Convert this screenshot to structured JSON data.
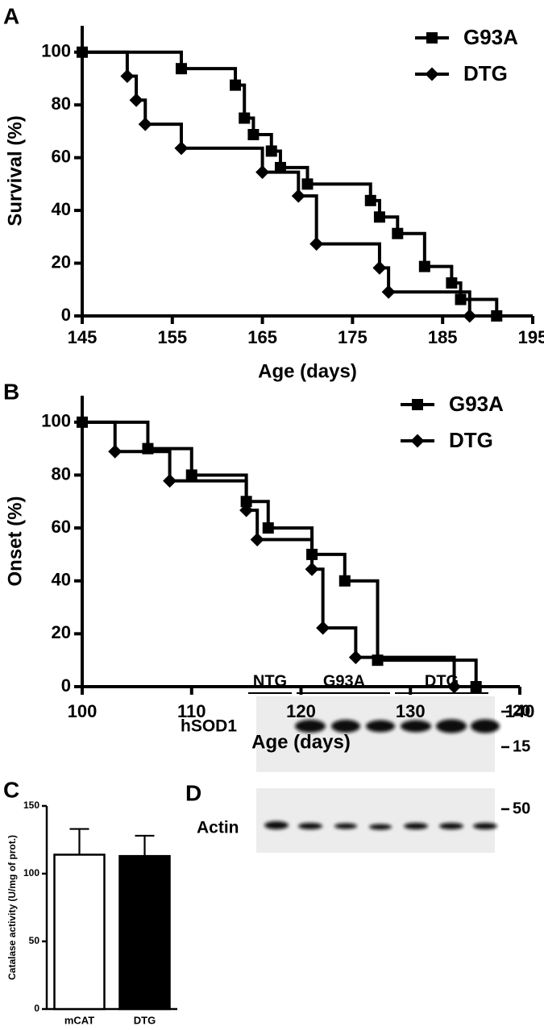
{
  "chart_data": [
    {
      "type": "line",
      "label": "A",
      "step": true,
      "xlabel": "Age (days)",
      "ylabel": "Survival (%)",
      "xlim": [
        145,
        195
      ],
      "xticks": [
        145,
        155,
        165,
        175,
        185,
        195
      ],
      "ylim": [
        0,
        110
      ],
      "yticks": [
        0,
        20,
        40,
        60,
        80,
        100
      ],
      "legend": "upper right",
      "series": [
        {
          "name": "G93A",
          "marker": "square",
          "color": "#000000",
          "x": [
            145,
            156,
            162,
            163,
            164,
            166,
            167,
            170,
            177,
            178,
            180,
            183,
            186,
            187,
            191
          ],
          "values": [
            100,
            93.75,
            87.5,
            75,
            68.75,
            62.5,
            56.25,
            50,
            43.75,
            37.5,
            31.25,
            18.75,
            12.5,
            6.25,
            0
          ]
        },
        {
          "name": "DTG",
          "marker": "diamond",
          "color": "#000000",
          "x": [
            145,
            150,
            151,
            152,
            156,
            165,
            169,
            171,
            178,
            179,
            188
          ],
          "values": [
            100,
            90.9,
            81.8,
            72.7,
            63.6,
            54.5,
            45.5,
            27.3,
            18.2,
            9.1,
            0
          ]
        }
      ]
    },
    {
      "type": "line",
      "label": "B",
      "step": true,
      "xlabel": "Age (days)",
      "ylabel": "Onset (%)",
      "xlim": [
        100,
        140
      ],
      "xticks": [
        100,
        110,
        120,
        130,
        140
      ],
      "ylim": [
        0,
        110
      ],
      "yticks": [
        0,
        20,
        40,
        60,
        80,
        100
      ],
      "legend": "upper right",
      "series": [
        {
          "name": "G93A",
          "marker": "square",
          "color": "#000000",
          "x": [
            100,
            106,
            110,
            115,
            117,
            121,
            124,
            127,
            136
          ],
          "values": [
            100,
            90,
            80,
            70,
            60,
            50,
            40,
            10,
            0
          ]
        },
        {
          "name": "DTG",
          "marker": "diamond",
          "color": "#000000",
          "x": [
            100,
            103,
            108,
            115,
            116,
            121,
            122,
            125,
            134
          ],
          "values": [
            100,
            88.9,
            77.8,
            66.7,
            55.6,
            44.4,
            22.2,
            11.1,
            0
          ]
        }
      ]
    },
    {
      "type": "bar",
      "label": "C",
      "ylabel": "Catalase activity (U/mg of prot.)",
      "categories": [
        "mCAT",
        "DTG"
      ],
      "values": [
        114,
        113
      ],
      "errors": [
        19,
        15
      ],
      "colors": [
        "#ffffff",
        "#000000"
      ],
      "ylim": [
        0,
        150
      ],
      "yticks": [
        0,
        50,
        100,
        150
      ]
    }
  ],
  "blot": {
    "label": "D",
    "lanes": [
      "NTG",
      "G93A",
      "DTG"
    ],
    "rows": [
      "hSOD1",
      "Actin"
    ],
    "markers": [
      "20",
      "15",
      "50"
    ]
  }
}
